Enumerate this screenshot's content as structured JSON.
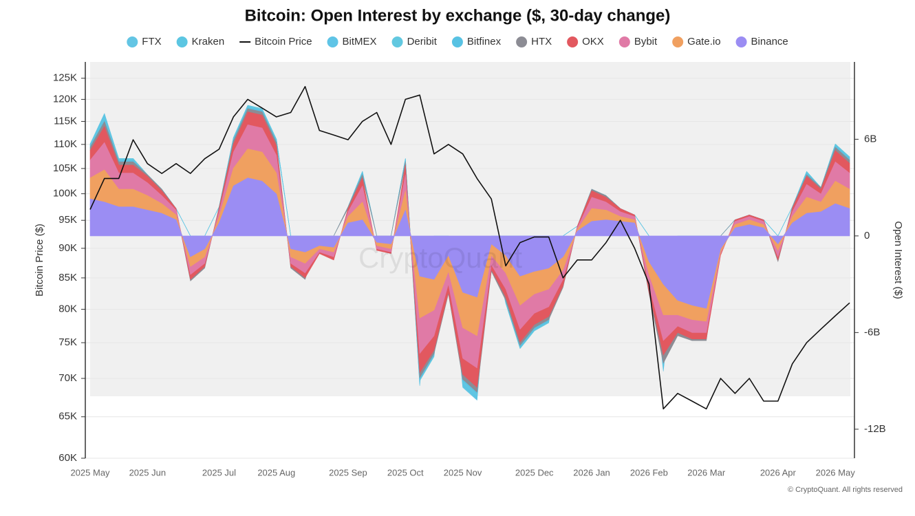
{
  "chart_data": {
    "type": "stacked-area-line",
    "title": "Bitcoin: Open Interest by exchange ($, 30-day change)",
    "y_label": "Bitcoin Price ($)",
    "y2_label": "Open Interest ($)",
    "watermark": "CryptoQuant",
    "source": "© CryptoQuant. All rights reserved",
    "grid": true,
    "ylog": true,
    "ylim": [
      60000,
      129000
    ],
    "yticks": [
      {
        "value": 60000,
        "label": "60K"
      },
      {
        "value": 65000,
        "label": "65K"
      },
      {
        "value": 70000,
        "label": "70K"
      },
      {
        "value": 75000,
        "label": "75K"
      },
      {
        "value": 80000,
        "label": "80K"
      },
      {
        "value": 85000,
        "label": "85K"
      },
      {
        "value": 90000,
        "label": "90K"
      },
      {
        "value": 95000,
        "label": "95K"
      },
      {
        "value": 100000,
        "label": "100K"
      },
      {
        "value": 105000,
        "label": "105K"
      },
      {
        "value": 110000,
        "label": "110K"
      },
      {
        "value": 115000,
        "label": "115K"
      },
      {
        "value": 120000,
        "label": "120K"
      },
      {
        "value": 125000,
        "label": "125K"
      }
    ],
    "y2lim": [
      -13.8,
      10.8
    ],
    "y2ticks": [
      {
        "value": 6,
        "label": "6B"
      },
      0,
      {
        "value": -6,
        "label": "-6B"
      },
      {
        "value": -12,
        "label": "-12B"
      }
    ],
    "categories": [
      "2025 May",
      null,
      null,
      null,
      "2025 Jun",
      null,
      null,
      null,
      null,
      "2025 Jul",
      null,
      null,
      null,
      "2025 Aug",
      null,
      null,
      null,
      null,
      "2025 Sep",
      null,
      null,
      null,
      "2025 Oct",
      null,
      null,
      null,
      "2025 Nov",
      null,
      null,
      null,
      null,
      "2025 Dec",
      null,
      null,
      null,
      "2026 Jan",
      null,
      null,
      null,
      "2026 Feb",
      null,
      null,
      null,
      "2026 Mar",
      null,
      null,
      null,
      null,
      "2026 Apr",
      null,
      null,
      null,
      "2026 May",
      null
    ],
    "series": [
      {
        "name": "FTX",
        "color": "#63c5e4",
        "axis": "y2",
        "values": [
          0,
          0.1,
          0,
          0,
          0,
          0,
          0,
          0,
          0,
          0,
          0,
          0,
          0,
          0,
          0,
          0,
          0,
          0,
          0,
          0,
          0,
          0,
          0,
          -0.1,
          0,
          0,
          -0.1,
          -0.1,
          0,
          0,
          0,
          0,
          0,
          0,
          0,
          0,
          0,
          0,
          0,
          0,
          -0.1,
          0,
          0,
          0,
          0,
          0,
          0,
          0,
          0,
          0,
          0,
          0,
          0,
          0
        ]
      },
      {
        "name": "Kraken",
        "color": "#5cc6e2",
        "axis": "y2",
        "values": [
          0,
          0.1,
          0,
          0,
          0,
          0,
          0,
          0,
          0,
          0,
          0,
          0,
          0,
          0,
          0,
          0,
          0,
          0,
          0,
          0,
          0,
          0,
          0,
          -0.1,
          0,
          0,
          -0.1,
          -0.1,
          0,
          0,
          0,
          0,
          0,
          0,
          0,
          0,
          0,
          0,
          0,
          0,
          -0.1,
          0,
          0,
          0,
          0,
          0,
          0,
          0,
          0,
          0,
          0,
          0,
          0,
          0
        ]
      },
      {
        "name": "Bitcoin Price",
        "color": "#111111",
        "values": [
          97000,
          103000,
          103000,
          111000,
          106000,
          104000,
          106000,
          104000,
          107000,
          109000,
          116000,
          120000,
          118000,
          116000,
          117000,
          123000,
          113000,
          112000,
          111000,
          115000,
          117000,
          110000,
          120000,
          121000,
          108000,
          110000,
          108000,
          103000,
          99000,
          87000,
          91000,
          92000,
          92000,
          85000,
          88000,
          88000,
          91000,
          95000,
          90000,
          84000,
          66000,
          68000,
          67000,
          66000,
          70000,
          68000,
          70000,
          67000,
          67000,
          72000,
          75000,
          77000,
          79000,
          81000
        ]
      },
      {
        "name": "BitMEX",
        "color": "#5fc4e6",
        "axis": "y2",
        "values": [
          0,
          0.1,
          0,
          0,
          0,
          0,
          0,
          0,
          0,
          0,
          0,
          0,
          0,
          0,
          0,
          0,
          0,
          0,
          0,
          0,
          0,
          0,
          0,
          -0.1,
          0,
          0,
          -0.1,
          -0.1,
          0,
          0,
          0,
          0,
          0,
          0,
          0,
          0,
          0,
          0,
          0,
          0,
          -0.1,
          0,
          0,
          0,
          0,
          0,
          0,
          0,
          0,
          0,
          0,
          0,
          0,
          0
        ]
      },
      {
        "name": "Deribit",
        "color": "#62c8e0",
        "axis": "y2",
        "values": [
          0.1,
          0.1,
          0.1,
          0.1,
          0,
          0,
          0,
          0,
          0,
          0,
          0.1,
          0.1,
          0.1,
          0.1,
          0,
          0,
          0,
          0,
          0,
          0.1,
          0,
          0,
          0.1,
          -0.1,
          -0.1,
          0,
          -0.1,
          -0.1,
          0,
          -0.1,
          -0.1,
          -0.1,
          -0.1,
          0,
          0,
          0,
          0,
          0,
          0,
          0,
          -0.1,
          0,
          0,
          0,
          0,
          0,
          0,
          0,
          0,
          0,
          0.1,
          0,
          0.1,
          0.1
        ]
      },
      {
        "name": "Bitfinex",
        "color": "#58c2e3",
        "axis": "y2",
        "values": [
          0.1,
          0.1,
          0.1,
          0.1,
          0,
          0,
          0,
          0,
          0,
          0,
          0.1,
          0.1,
          0.1,
          0.1,
          0,
          0,
          0,
          0,
          0,
          0.1,
          0,
          0,
          0.1,
          -0.1,
          -0.1,
          0,
          -0.1,
          -0.1,
          0,
          -0.1,
          -0.1,
          -0.1,
          -0.1,
          0,
          0,
          0,
          0,
          0,
          0,
          0,
          -0.1,
          0,
          0,
          0,
          0,
          0,
          0,
          0,
          0,
          0,
          0.1,
          0,
          0.1,
          0.1
        ]
      },
      {
        "name": "HTX",
        "color": "#8c8c94",
        "axis": "y2",
        "values": [
          0.2,
          0.3,
          0.2,
          0.2,
          0.1,
          0.1,
          0,
          -0.1,
          -0.1,
          0.1,
          0.2,
          0.2,
          0.2,
          0.2,
          -0.1,
          -0.1,
          0,
          0,
          0.1,
          0.2,
          0,
          0,
          0.2,
          -0.3,
          -0.2,
          -0.1,
          -0.3,
          -0.3,
          -0.1,
          -0.2,
          -0.2,
          -0.2,
          -0.2,
          -0.1,
          0,
          0.1,
          0.1,
          0,
          0,
          -0.1,
          -0.5,
          -0.2,
          -0.1,
          -0.1,
          0,
          0,
          0,
          0,
          -0.1,
          0.1,
          0.1,
          0.1,
          0.2,
          0.2
        ]
      },
      {
        "name": "OKX",
        "color": "#e2585f",
        "axis": "y2",
        "values": [
          0.6,
          1.0,
          0.5,
          0.5,
          0.4,
          0.3,
          0.1,
          -0.3,
          -0.2,
          0.2,
          0.5,
          0.8,
          0.8,
          0.6,
          -0.2,
          -0.3,
          -0.1,
          -0.2,
          0.2,
          0.5,
          -0.1,
          -0.1,
          0.6,
          -1.2,
          -0.9,
          -0.5,
          -1.0,
          -1.2,
          -0.3,
          -0.5,
          -0.8,
          -0.7,
          -0.6,
          -0.4,
          0.1,
          0.4,
          0.3,
          0.2,
          0.1,
          -0.4,
          -0.9,
          -0.4,
          -0.4,
          -0.4,
          -0.1,
          0.1,
          0.1,
          0.1,
          -0.2,
          0.2,
          0.5,
          0.3,
          0.7,
          0.6
        ]
      },
      {
        "name": "Bybit",
        "color": "#e07aa6",
        "axis": "y2",
        "values": [
          1.1,
          1.7,
          1.0,
          1.0,
          0.8,
          0.5,
          0.3,
          -0.5,
          -0.4,
          0.3,
          1.0,
          1.5,
          1.5,
          1.1,
          -0.4,
          -0.6,
          -0.2,
          -0.3,
          0.3,
          1.0,
          -0.2,
          -0.2,
          1.0,
          -2.2,
          -1.6,
          -0.8,
          -1.9,
          -2.0,
          -0.6,
          -1.0,
          -1.5,
          -1.2,
          -1.1,
          -0.6,
          0.1,
          0.7,
          0.5,
          0.3,
          0.2,
          -0.7,
          -1.6,
          -0.7,
          -0.8,
          -0.7,
          -0.1,
          0.2,
          0.2,
          0.2,
          -0.4,
          0.3,
          0.8,
          0.5,
          1.2,
          1.0
        ]
      },
      {
        "name": "Gate.io",
        "color": "#f0a060",
        "axis": "y2",
        "values": [
          1.3,
          2.0,
          1.1,
          1.1,
          0.9,
          0.6,
          0.3,
          -0.6,
          -0.5,
          0.4,
          1.1,
          1.8,
          1.8,
          1.3,
          -0.5,
          -0.7,
          -0.2,
          -0.3,
          0.4,
          1.1,
          -0.2,
          -0.3,
          1.2,
          -2.6,
          -1.9,
          -1.0,
          -2.2,
          -2.4,
          -0.7,
          -1.1,
          -1.8,
          -1.4,
          -1.3,
          -0.8,
          0.1,
          0.8,
          0.6,
          0.3,
          0.2,
          -0.8,
          -1.9,
          -0.9,
          -0.9,
          -0.8,
          -0.2,
          0.2,
          0.3,
          0.2,
          -0.4,
          0.4,
          1.0,
          0.6,
          1.4,
          1.2
        ]
      },
      {
        "name": "Binance",
        "color": "#9b8df3",
        "axis": "y2",
        "values": [
          2.3,
          2.1,
          1.8,
          1.8,
          1.6,
          1.4,
          1.0,
          -1.3,
          -0.8,
          0.8,
          3.1,
          3.6,
          3.4,
          2.6,
          -0.8,
          -1.0,
          -0.6,
          -0.7,
          0.8,
          1.0,
          -0.4,
          -0.5,
          1.6,
          -2.5,
          -2.7,
          -1.2,
          -3.5,
          -3.8,
          -0.5,
          -1.2,
          -2.5,
          -2.2,
          -2.0,
          -1.3,
          0.3,
          0.9,
          1.0,
          0.9,
          0.8,
          -1.6,
          -3.0,
          -4.0,
          -4.3,
          -4.5,
          -0.8,
          0.5,
          0.7,
          0.5,
          -0.5,
          0.8,
          1.4,
          1.5,
          2.0,
          1.7
        ]
      }
    ]
  }
}
